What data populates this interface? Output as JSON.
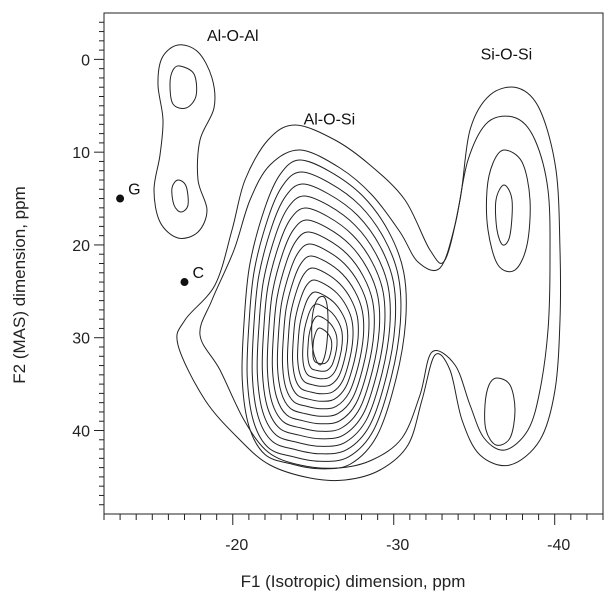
{
  "chart_data": {
    "type": "contour",
    "title": "",
    "xlabel": "F1 (Isotropic) dimension, ppm",
    "ylabel": "F2 (MAS) dimension, ppm",
    "xlim": [
      -12,
      -43
    ],
    "ylim": [
      -5,
      49
    ],
    "x_ticks": [
      -20,
      -30,
      -40
    ],
    "y_ticks": [
      0,
      10,
      20,
      30,
      40
    ],
    "x_tick_labels": [
      "-20",
      "-30",
      "-40"
    ],
    "y_tick_labels": [
      "0",
      "10",
      "20",
      "30",
      "40"
    ],
    "regions": [
      {
        "label": "Al-O-Al",
        "center": [
          -17,
          8
        ],
        "label_at": [
          -20,
          -2
        ]
      },
      {
        "label": "Al-O-Si",
        "center": [
          -26,
          29
        ],
        "label_at": [
          -26,
          7
        ]
      },
      {
        "label": "Si-O-Si",
        "center": [
          -36.5,
          25
        ],
        "label_at": [
          -37,
          0
        ]
      }
    ],
    "points": [
      {
        "label": "G",
        "x": -13,
        "y": 15
      },
      {
        "label": "C",
        "x": -17,
        "y": 24
      }
    ]
  }
}
